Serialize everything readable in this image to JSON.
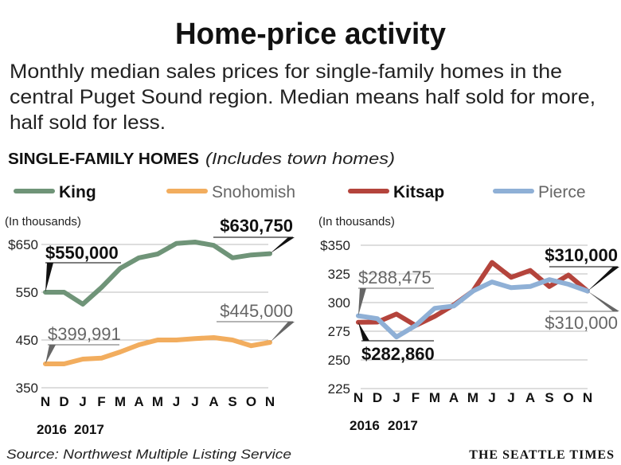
{
  "title": "Home-price activity",
  "subtitle_lines": [
    "Monthly median sales prices for single-family homes in the",
    "central Puget Sound region. Median means half sold for more,",
    "half sold for less."
  ],
  "section_label": "SINGLE-FAMILY HOMES",
  "section_note": "(Includes town homes)",
  "source": "Source: Northwest Multiple Listing Service",
  "brand": "THE SEATTLE TIMES",
  "chart_data": [
    {
      "type": "line",
      "unit_label": "(In thousands)",
      "categories": [
        "N",
        "D",
        "J",
        "F",
        "M",
        "A",
        "M",
        "J",
        "J",
        "A",
        "S",
        "O",
        "N"
      ],
      "years": [
        "2016",
        "2017"
      ],
      "yticks": [
        "$650",
        "550",
        "450",
        "350"
      ],
      "ytick_values": [
        650,
        550,
        450,
        350
      ],
      "ylim": [
        350,
        650
      ],
      "series": [
        {
          "name": "King",
          "color": "#6f9478",
          "values": [
            550,
            550,
            525,
            560,
            600,
            622,
            630,
            652,
            655,
            648,
            622,
            628,
            630.75
          ],
          "start_label": "$550,000",
          "end_label": "$630,750",
          "emphasis": true
        },
        {
          "name": "Snohomish",
          "color": "#f2ad5e",
          "values": [
            399.991,
            400,
            410,
            412,
            425,
            440,
            450,
            450,
            453,
            455,
            450,
            438,
            445
          ],
          "start_label": "$399,991",
          "end_label": "$445,000",
          "emphasis": false
        }
      ]
    },
    {
      "type": "line",
      "unit_label": "(In thousands)",
      "categories": [
        "N",
        "D",
        "J",
        "F",
        "M",
        "A",
        "M",
        "J",
        "J",
        "A",
        "S",
        "O",
        "N"
      ],
      "years": [
        "2016",
        "2017"
      ],
      "yticks": [
        "$350",
        "325",
        "300",
        "275",
        "250",
        "225"
      ],
      "ytick_values": [
        350,
        325,
        300,
        275,
        250,
        225
      ],
      "ylim": [
        225,
        350
      ],
      "series": [
        {
          "name": "Kitsap",
          "color": "#b4443c",
          "values": [
            282.86,
            283,
            290,
            280,
            288,
            298,
            310,
            335,
            322,
            328,
            314,
            324,
            310
          ],
          "start_label": "$282,860",
          "end_label": "$310,000",
          "emphasis": true
        },
        {
          "name": "Pierce",
          "color": "#8fb0d6",
          "values": [
            288.475,
            286,
            270,
            280,
            295,
            297,
            310,
            318,
            313,
            314,
            320,
            316,
            310
          ],
          "start_label": "$288,475",
          "end_label": "$310,000",
          "emphasis": false
        }
      ]
    }
  ]
}
